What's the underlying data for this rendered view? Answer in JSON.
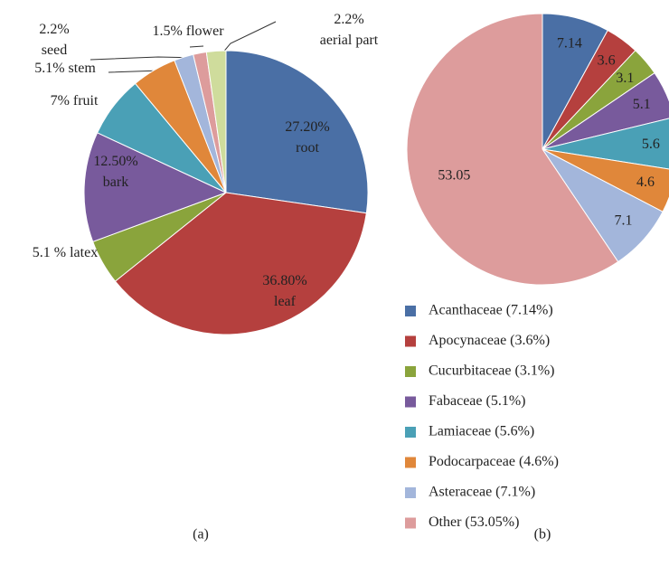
{
  "chart_data": [
    {
      "type": "pie",
      "caption": "(a)",
      "categories": [
        "root",
        "leaf",
        "latex",
        "bark",
        "fruit",
        "stem",
        "seed",
        "flower",
        "aerial part"
      ],
      "values": [
        27.2,
        36.8,
        5.1,
        12.5,
        7,
        5.1,
        2.2,
        1.5,
        2.2
      ],
      "value_labels": [
        "27.20%",
        "36.80%",
        "5.1 %",
        "12.50%",
        "7%",
        "5.1%",
        "2.2%",
        "1.5%",
        "2.2%"
      ],
      "colors": [
        "#4a6fa5",
        "#b5403e",
        "#8aa43c",
        "#785a9c",
        "#4aa0b6",
        "#e0873a",
        "#a3b6db",
        "#dd9c9c",
        "#cfdc9c"
      ]
    },
    {
      "type": "pie",
      "caption": "(b)",
      "categories": [
        "Acanthaceae (7.14%)",
        "Apocynaceae (3.6%)",
        "Cucurbitaceae (3.1%)",
        "Fabaceae (5.1%)",
        "Lamiaceae (5.6%)",
        "Podocarpaceae (4.6%)",
        "Asteraceae (7.1%)",
        "Other (53.05%)"
      ],
      "values": [
        7.14,
        3.6,
        3.1,
        5.1,
        5.6,
        4.6,
        7.1,
        53.05
      ],
      "colors": [
        "#4a6fa5",
        "#b5403e",
        "#8aa43c",
        "#785a9c",
        "#4aa0b6",
        "#e0873a",
        "#a3b6db",
        "#dd9c9c"
      ],
      "legend": "bottom"
    }
  ]
}
